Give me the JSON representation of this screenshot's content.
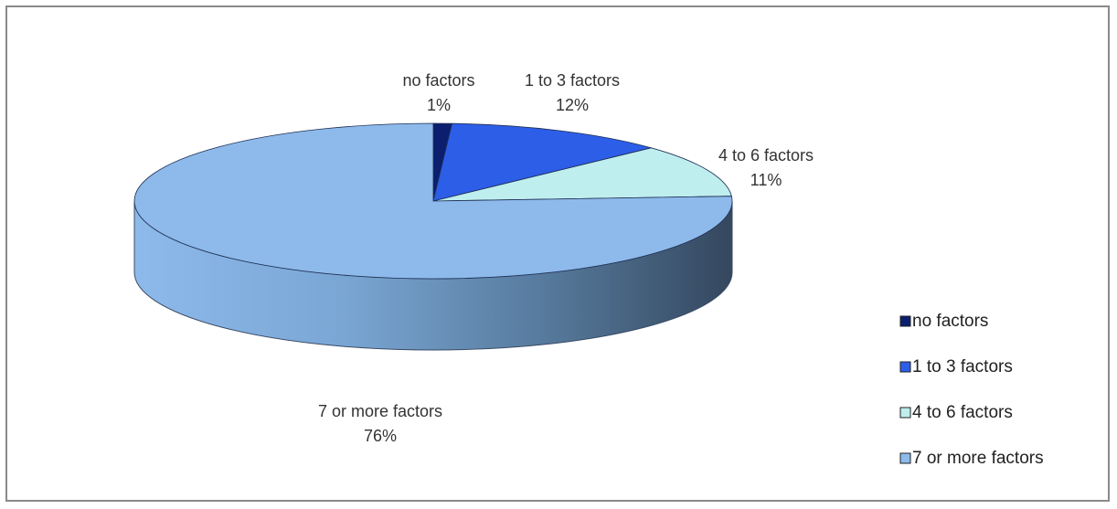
{
  "chart_data": {
    "type": "pie",
    "three_d": true,
    "categories": [
      "no factors",
      "1 to 3 factors",
      "4 to 6 factors",
      "7 or more factors"
    ],
    "values": [
      1,
      12,
      11,
      76
    ],
    "data_labels": [
      "1%",
      "12%",
      "11%",
      "76%"
    ],
    "colors": [
      "#0b1f6e",
      "#2d5ee8",
      "#bfeeee",
      "#8dbaeb"
    ],
    "legend_position": "right",
    "title": ""
  }
}
